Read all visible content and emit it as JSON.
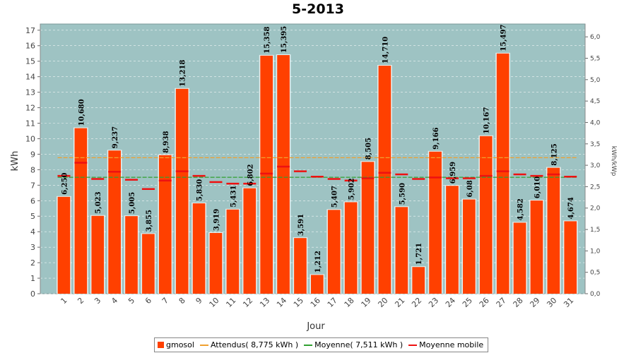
{
  "chart_data": {
    "type": "bar",
    "title": "5-2013",
    "xlabel": "Jour",
    "ylabel": "kWh",
    "y2label": "kWh/kWp",
    "ylim": [
      0,
      17.4
    ],
    "y2lim": [
      0,
      6.3
    ],
    "yticks": [
      "0",
      "1",
      "2",
      "3",
      "4",
      "5",
      "6",
      "7",
      "8",
      "9",
      "10",
      "11",
      "12",
      "13",
      "14",
      "15",
      "16",
      "17"
    ],
    "y2ticks": [
      "0,0",
      "0,5",
      "1,0",
      "1,5",
      "2,0",
      "2,5",
      "3,0",
      "3,5",
      "4,0",
      "4,5",
      "5,0",
      "5,5",
      "6,0"
    ],
    "categories": [
      "1",
      "2",
      "3",
      "4",
      "5",
      "6",
      "7",
      "8",
      "9",
      "10",
      "11",
      "12",
      "13",
      "14",
      "15",
      "16",
      "17",
      "18",
      "19",
      "20",
      "21",
      "22",
      "23",
      "24",
      "25",
      "26",
      "27",
      "28",
      "29",
      "30",
      "31"
    ],
    "series": [
      {
        "name": "gmosol",
        "values": [
          6.25,
          10.68,
          5.023,
          9.237,
          5.005,
          3.855,
          8.938,
          13.218,
          5.83,
          3.919,
          5.431,
          6.802,
          15.358,
          15.395,
          3.591,
          1.212,
          5.407,
          5.902,
          8.505,
          14.71,
          5.59,
          1.721,
          9.166,
          6.959,
          6.08,
          10.167,
          15.497,
          4.582,
          6.01,
          8.125,
          4.674
        ],
        "labels": [
          "6,250",
          "10,680",
          "5,023",
          "9,237",
          "5,005",
          "3,855",
          "8,938",
          "13,218",
          "5,830",
          "3,919",
          "5,431",
          "6,802",
          "15,358",
          "15,395",
          "3,591",
          "1,212",
          "5,407",
          "5,902",
          "8,505",
          "14,710",
          "5,590",
          "1,721",
          "9,166",
          "6,959",
          "6,08",
          "10,167",
          "15,497",
          "4,582",
          "6,010",
          "8,125",
          "4,674"
        ]
      },
      {
        "name": "Moyenne mobile",
        "values": [
          7.6,
          8.45,
          7.4,
          7.87,
          7.35,
          6.75,
          7.3,
          7.9,
          7.6,
          7.2,
          7.1,
          7.1,
          7.75,
          8.2,
          7.9,
          7.55,
          7.4,
          7.3,
          7.45,
          7.8,
          7.7,
          7.4,
          7.5,
          7.45,
          7.45,
          7.6,
          7.9,
          7.7,
          7.6,
          7.7,
          7.55
        ]
      }
    ],
    "reference_lines": [
      {
        "name": "Attendus( 8,775 kWh )",
        "value": 8.775
      },
      {
        "name": "Moyenne( 7,511 kWh )",
        "value": 7.511
      }
    ],
    "legend": [
      {
        "label": "gmosol",
        "color": "#ff4000",
        "kind": "box"
      },
      {
        "label": "Attendus( 8,775 kWh )",
        "color": "#f0a030",
        "kind": "line"
      },
      {
        "label": "Moyenne( 7,511 kWh )",
        "color": "#30a030",
        "kind": "line"
      },
      {
        "label": "Moyenne mobile",
        "color": "#ee1111",
        "kind": "line"
      }
    ],
    "legend_position": "bottom-center",
    "grid": true,
    "colors": {
      "plot_bg": "#9ec3c3",
      "bar": "#ff4000",
      "expected_line": "#f0a030",
      "average_line": "#30a030",
      "moving_average": "#ee1111"
    }
  }
}
